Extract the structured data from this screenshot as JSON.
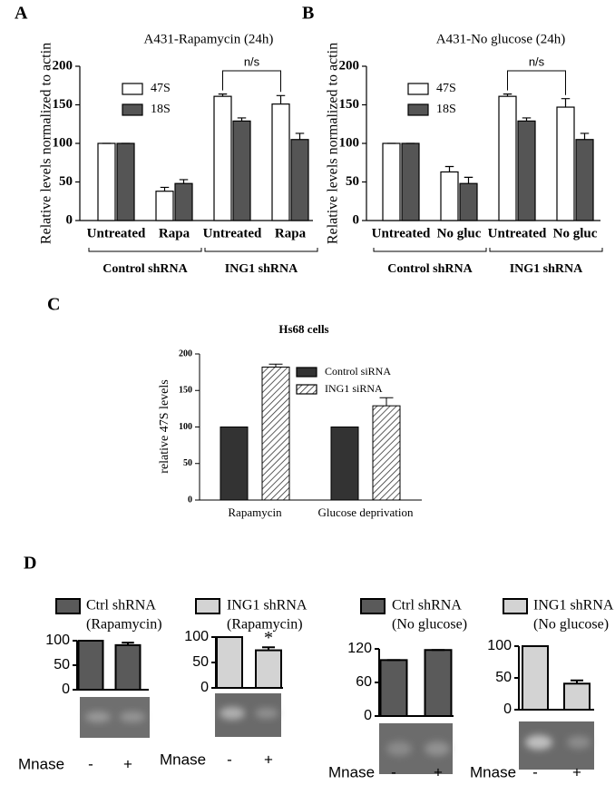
{
  "panel_labels": [
    "A",
    "B",
    "C",
    "D"
  ],
  "chart_data": [
    {
      "type": "bar",
      "title": "A431-Rapamycin (24h)",
      "y_label": "Relative levels normalized to actin",
      "categories": [
        "Untreated",
        "Rapa",
        "Untreated",
        "Rapa"
      ],
      "group_labels": [
        "Control shRNA",
        "ING1 shRNA"
      ],
      "series": [
        {
          "name": "47S",
          "color": "#ffffff",
          "values": [
            100,
            38,
            161,
            151
          ],
          "errors": [
            0,
            5,
            3,
            11
          ]
        },
        {
          "name": "18S",
          "color": "#555555",
          "values": [
            100,
            48,
            129,
            105
          ],
          "errors": [
            0,
            5,
            4,
            8
          ]
        }
      ],
      "ylim": [
        0,
        200
      ],
      "yticks": [
        0,
        50,
        100,
        150,
        200
      ],
      "annotation": "n/s"
    },
    {
      "type": "bar",
      "title": "A431-No glucose (24h)",
      "y_label": "Relative levels normalized to actin",
      "categories": [
        "Untreated",
        "No gluc",
        "Untreated",
        "No gluc"
      ],
      "group_labels": [
        "Control shRNA",
        "ING1 shRNA"
      ],
      "series": [
        {
          "name": "47S",
          "color": "#ffffff",
          "values": [
            100,
            63,
            161,
            147
          ],
          "errors": [
            0,
            7,
            3,
            11
          ]
        },
        {
          "name": "18S",
          "color": "#555555",
          "values": [
            100,
            48,
            129,
            105
          ],
          "errors": [
            0,
            8,
            4,
            8
          ]
        }
      ],
      "ylim": [
        0,
        200
      ],
      "yticks": [
        0,
        50,
        100,
        150,
        200
      ],
      "annotation": "n/s"
    },
    {
      "type": "bar",
      "title": "Hs68 cells",
      "y_label": "relative 47S levels",
      "categories": [
        "Rapamycin",
        "Glucose deprivation"
      ],
      "series": [
        {
          "name": "Control siRNA",
          "color": "#333333",
          "values": [
            100,
            100
          ],
          "errors": [
            0,
            0
          ]
        },
        {
          "name": "ING1 siRNA",
          "color": "#ffffff",
          "hatch": true,
          "values": [
            182,
            129
          ],
          "errors": [
            4,
            11
          ]
        }
      ],
      "ylim": [
        0,
        200
      ],
      "yticks": [
        0,
        50,
        100,
        150,
        200
      ]
    },
    {
      "type": "bar",
      "subtitle": "(Rapamycin)",
      "x_label": "Mnase",
      "categories": [
        "-",
        "+"
      ],
      "series": [
        {
          "name": "Ctrl shRNA",
          "color": "#5a5a5a",
          "values": [
            100,
            91
          ],
          "errors": [
            0,
            5
          ]
        }
      ],
      "ylim": [
        0,
        100
      ],
      "yticks": [
        0,
        50,
        100
      ]
    },
    {
      "type": "bar",
      "subtitle": "(Rapamycin)",
      "x_label": "Mnase",
      "categories": [
        "-",
        "+"
      ],
      "series": [
        {
          "name": "ING1 shRNA",
          "color": "#d3d3d3",
          "values": [
            100,
            74
          ],
          "errors": [
            0,
            6
          ]
        }
      ],
      "ylim": [
        0,
        100
      ],
      "yticks": [
        0,
        50,
        100
      ],
      "annotation": "*"
    },
    {
      "type": "bar",
      "subtitle": "(No glucose)",
      "x_label": "Mnase",
      "categories": [
        "-",
        "+"
      ],
      "series": [
        {
          "name": "Ctrl shRNA",
          "color": "#5a5a5a",
          "values": [
            100,
            118
          ],
          "errors": [
            0,
            0
          ]
        }
      ],
      "ylim": [
        0,
        120
      ],
      "yticks": [
        0,
        60,
        120
      ]
    },
    {
      "type": "bar",
      "subtitle": "(No glucose)",
      "x_label": "Mnase",
      "categories": [
        "-",
        "+"
      ],
      "series": [
        {
          "name": "ING1 shRNA",
          "color": "#d3d3d3",
          "values": [
            100,
            41
          ],
          "errors": [
            0,
            5
          ]
        }
      ],
      "ylim": [
        0,
        100
      ],
      "yticks": [
        0,
        50,
        100
      ]
    }
  ]
}
